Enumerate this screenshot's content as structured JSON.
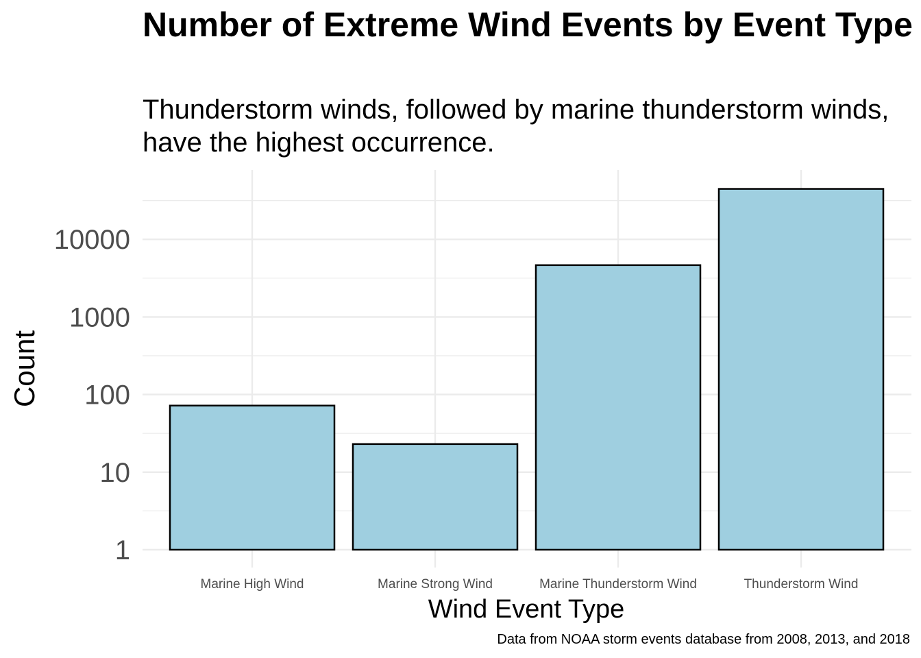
{
  "chart_data": {
    "type": "bar",
    "title": "Number of Extreme Wind Events by Event Type",
    "subtitle": "Thunderstorm winds, followed by marine thunderstorm winds, have the highest occurrence.",
    "xlabel": "Wind Event Type",
    "ylabel": "Count",
    "caption": "Data from NOAA storm events database from 2008, 2013, and 2018",
    "categories": [
      "Marine High Wind",
      "Marine Strong Wind",
      "Marine Thunderstorm Wind",
      "Thunderstorm Wind"
    ],
    "values": [
      72,
      23,
      4650,
      44700
    ],
    "y_scale": "log10",
    "y_ticks": [
      1,
      10,
      100,
      1000,
      10000
    ],
    "y_tick_labels": [
      "1",
      "10",
      "100",
      "1000",
      "10000"
    ],
    "ylim": [
      1,
      60000
    ],
    "grid": true,
    "bar_fill": "#9fcfe0",
    "bar_stroke": "#000000",
    "gridline_color": "#ebebeb"
  }
}
